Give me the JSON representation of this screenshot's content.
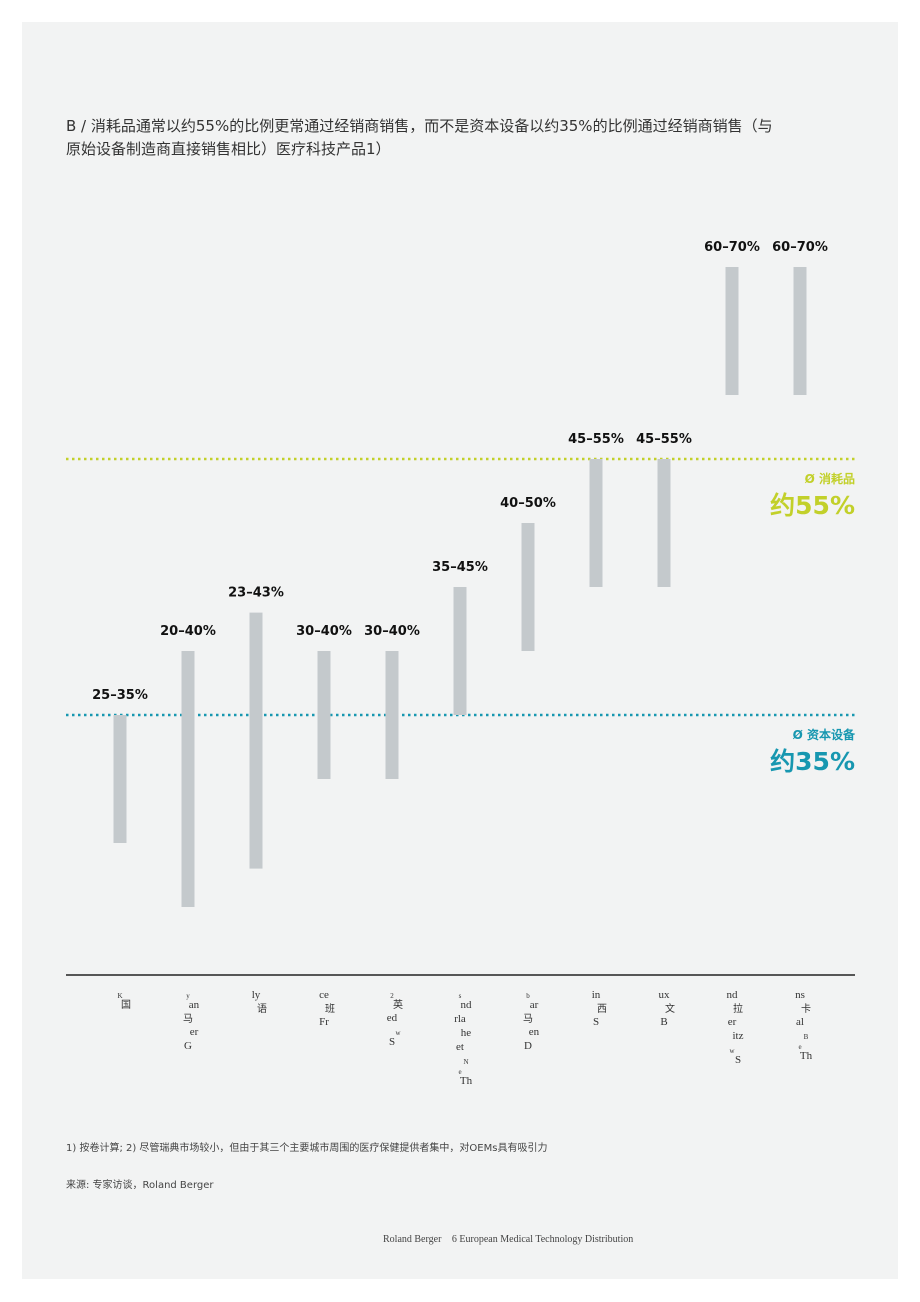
{
  "title": "B / 消耗品通常以约55%的比例更常通过经销商销售，而不是资本设备以约35%的比例通过经销商销售（与原始设备制造商直接销售相比）医疗科技产品1）",
  "footnote": "1) 按卷计算; 2) 尽管瑞典市场较小，但由于其三个主要城市周围的医疗保健提供者集中，对OEMs具有吸引力",
  "source": "来源: 专家访谈，Roland Berger",
  "footer": {
    "brand": "Roland Berger",
    "page_title": "6 European Medical Technology Distribution"
  },
  "colors": {
    "page_bg": "#f2f3f3",
    "bar": "#c4c9cc",
    "consumables": "#c2d02a",
    "capital": "#1797b0",
    "axis": "#222222"
  },
  "chart_data": {
    "type": "range-bar",
    "title": "",
    "xlabel": "",
    "ylabel": "",
    "ylim": [
      0,
      100
    ],
    "grid": false,
    "categories": [
      [
        "K",
        "国"
      ],
      [
        "y",
        "an",
        "马",
        "er",
        "G"
      ],
      [
        "ly",
        "语"
      ],
      [
        "ce",
        "班",
        "Fr"
      ],
      [
        "2",
        "英",
        "ed",
        "w",
        "S"
      ],
      [
        "s",
        "nd",
        "rla",
        "he",
        "et",
        "N",
        "e",
        "Th"
      ],
      [
        "b",
        "ar",
        "马",
        "en",
        "D"
      ],
      [
        "in",
        "西",
        "S"
      ],
      [
        "ux",
        "文",
        "B"
      ],
      [
        "nd",
        "拉",
        "er",
        "itz",
        "w",
        "S"
      ],
      [
        "ns",
        "卡",
        "al",
        "B",
        "e",
        "Th"
      ]
    ],
    "ranges": [
      {
        "low": 25,
        "high": 35,
        "label": "25–35%"
      },
      {
        "low": 20,
        "high": 40,
        "label": "20–40%"
      },
      {
        "low": 23,
        "high": 43,
        "label": "23–43%"
      },
      {
        "low": 30,
        "high": 40,
        "label": "30–40%"
      },
      {
        "low": 30,
        "high": 40,
        "label": "30–40%"
      },
      {
        "low": 35,
        "high": 45,
        "label": "35–45%"
      },
      {
        "low": 40,
        "high": 50,
        "label": "40–50%"
      },
      {
        "low": 45,
        "high": 55,
        "label": "45–55%"
      },
      {
        "low": 45,
        "high": 55,
        "label": "45–55%"
      },
      {
        "low": 60,
        "high": 70,
        "label": "60–70%"
      },
      {
        "low": 60,
        "high": 70,
        "label": "60–70%"
      }
    ],
    "reference_lines": [
      {
        "name": "Ø 消耗品",
        "value": 55,
        "display": "约55%",
        "color": "#c2d02a"
      },
      {
        "name": "Ø 资本设备",
        "value": 35,
        "display": "约35%",
        "color": "#1797b0"
      }
    ]
  }
}
